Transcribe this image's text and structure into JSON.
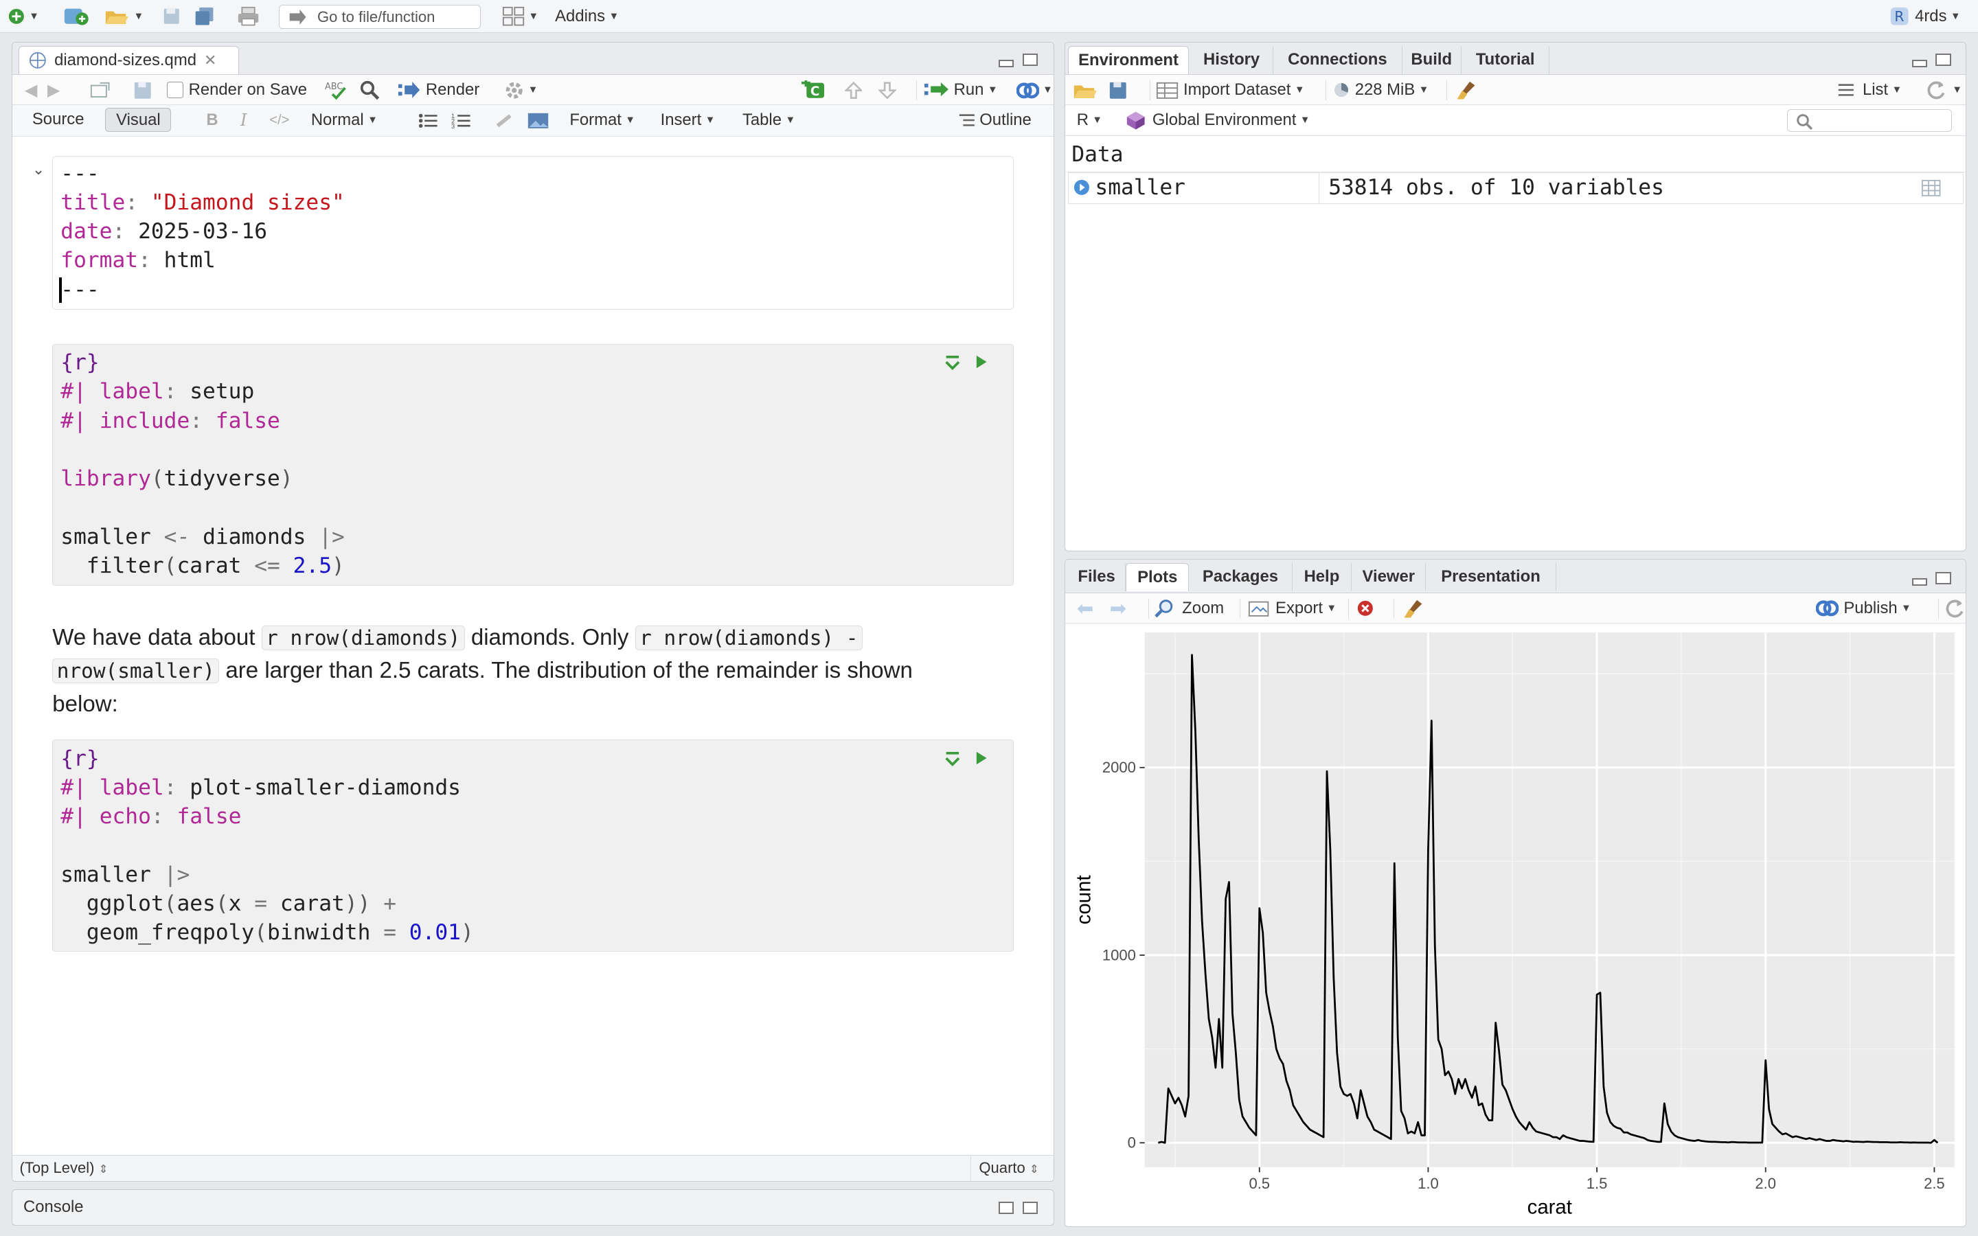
{
  "toolbar": {
    "goto_placeholder": "Go to file/function",
    "addins_label": "Addins",
    "project_label": "4rds"
  },
  "source_pane": {
    "file_tab": "diamond-sizes.qmd",
    "render_on_save": "Render on Save",
    "render_label": "Render",
    "run_label": "Run",
    "mode_source": "Source",
    "mode_visual": "Visual",
    "para_style": "Normal",
    "format_menu": "Format",
    "insert_menu": "Insert",
    "table_menu": "Table",
    "outline_label": "Outline",
    "yaml": {
      "open": "---",
      "title_key": "title",
      "title_val": "\"Diamond sizes\"",
      "date_key": "date",
      "date_val": "2025-03-16",
      "format_key": "format",
      "format_val": "html",
      "close": "---"
    },
    "chunk1": {
      "header": "{r}",
      "opt1_key": "label",
      "opt1_val": "setup",
      "opt2_key": "include",
      "opt2_val": "false",
      "lib_fn": "library",
      "lib_arg": "tidyverse",
      "assign_lhs": "smaller",
      "assign_op": "<-",
      "assign_rhs": "diamonds",
      "pipe": "|>",
      "filter_fn": "filter",
      "filter_var": "carat",
      "filter_op": "<=",
      "filter_val": "2.5"
    },
    "prose": {
      "p1": "We have data about ",
      "code1": "r nrow(diamonds)",
      "p2": " diamonds. Only ",
      "code2a": "r nrow(diamonds) -",
      "code2b": "nrow(smaller)",
      "p3": " are larger than 2.5 carats. The distribution of the remainder is shown below:"
    },
    "chunk2": {
      "header": "{r}",
      "opt1_key": "label",
      "opt1_val": "plot-smaller-diamonds",
      "opt2_key": "echo",
      "opt2_val": "false",
      "l1": "smaller",
      "pipe": "|>",
      "ggplot_fn": "ggplot",
      "aes_fn": "aes",
      "aes_x": "x",
      "aes_val": "carat",
      "plus": "+",
      "geom_fn": "geom_freqpoly",
      "bw_key": "binwidth",
      "bw_val": "0.01"
    },
    "status_left": "(Top Level)",
    "status_right": "Quarto"
  },
  "console": {
    "title": "Console"
  },
  "env_pane": {
    "tabs": [
      "Environment",
      "History",
      "Connections",
      "Build",
      "Tutorial"
    ],
    "import_label": "Import Dataset",
    "memory_label": "228 MiB",
    "view_mode": "List",
    "lang_label": "R",
    "env_label": "Global Environment",
    "section_title": "Data",
    "rows": [
      {
        "name": "smaller",
        "value": "53814 obs. of 10 variables"
      }
    ]
  },
  "files_pane": {
    "tabs": [
      "Files",
      "Plots",
      "Packages",
      "Help",
      "Viewer",
      "Presentation"
    ],
    "zoom_label": "Zoom",
    "export_label": "Export",
    "publish_label": "Publish"
  },
  "chart_data": {
    "type": "line",
    "xlabel": "carat",
    "ylabel": "count",
    "x_ticks": [
      0.5,
      1.0,
      1.5,
      2.0,
      2.5
    ],
    "x_tick_labels": [
      "0.5",
      "1.0",
      "1.5",
      "2.0",
      "2.5"
    ],
    "y_ticks": [
      0,
      1000,
      2000
    ],
    "y_tick_labels": [
      "0",
      "1000",
      "2000"
    ],
    "xlim": [
      0.16,
      2.56
    ],
    "ylim": [
      -130,
      2720
    ],
    "grid": true,
    "series": [
      {
        "values": [
          [
            0.2,
            0
          ],
          [
            0.21,
            5
          ],
          [
            0.22,
            0
          ],
          [
            0.23,
            290
          ],
          [
            0.24,
            250
          ],
          [
            0.25,
            210
          ],
          [
            0.26,
            240
          ],
          [
            0.27,
            200
          ],
          [
            0.28,
            140
          ],
          [
            0.29,
            250
          ],
          [
            0.3,
            2600
          ],
          [
            0.31,
            2200
          ],
          [
            0.32,
            1620
          ],
          [
            0.33,
            1180
          ],
          [
            0.34,
            900
          ],
          [
            0.35,
            660
          ],
          [
            0.36,
            560
          ],
          [
            0.37,
            400
          ],
          [
            0.38,
            660
          ],
          [
            0.39,
            400
          ],
          [
            0.4,
            1300
          ],
          [
            0.41,
            1390
          ],
          [
            0.42,
            690
          ],
          [
            0.43,
            480
          ],
          [
            0.44,
            230
          ],
          [
            0.45,
            140
          ],
          [
            0.46,
            110
          ],
          [
            0.47,
            80
          ],
          [
            0.48,
            60
          ],
          [
            0.49,
            40
          ],
          [
            0.5,
            1250
          ],
          [
            0.51,
            1120
          ],
          [
            0.52,
            800
          ],
          [
            0.53,
            700
          ],
          [
            0.54,
            620
          ],
          [
            0.55,
            500
          ],
          [
            0.56,
            450
          ],
          [
            0.57,
            420
          ],
          [
            0.58,
            330
          ],
          [
            0.59,
            280
          ],
          [
            0.6,
            200
          ],
          [
            0.61,
            170
          ],
          [
            0.62,
            140
          ],
          [
            0.63,
            110
          ],
          [
            0.64,
            90
          ],
          [
            0.65,
            70
          ],
          [
            0.66,
            60
          ],
          [
            0.67,
            50
          ],
          [
            0.68,
            40
          ],
          [
            0.69,
            30
          ],
          [
            0.7,
            1980
          ],
          [
            0.71,
            1560
          ],
          [
            0.72,
            880
          ],
          [
            0.73,
            480
          ],
          [
            0.74,
            300
          ],
          [
            0.75,
            260
          ],
          [
            0.76,
            250
          ],
          [
            0.77,
            260
          ],
          [
            0.78,
            210
          ],
          [
            0.79,
            130
          ],
          [
            0.8,
            280
          ],
          [
            0.81,
            210
          ],
          [
            0.82,
            140
          ],
          [
            0.83,
            110
          ],
          [
            0.84,
            70
          ],
          [
            0.85,
            60
          ],
          [
            0.86,
            50
          ],
          [
            0.87,
            40
          ],
          [
            0.88,
            30
          ],
          [
            0.89,
            20
          ],
          [
            0.9,
            1490
          ],
          [
            0.91,
            560
          ],
          [
            0.92,
            170
          ],
          [
            0.93,
            130
          ],
          [
            0.94,
            50
          ],
          [
            0.95,
            60
          ],
          [
            0.96,
            50
          ],
          [
            0.97,
            110
          ],
          [
            0.98,
            40
          ],
          [
            0.99,
            40
          ],
          [
            1.0,
            1560
          ],
          [
            1.01,
            2250
          ],
          [
            1.02,
            1050
          ],
          [
            1.03,
            550
          ],
          [
            1.04,
            500
          ],
          [
            1.05,
            360
          ],
          [
            1.06,
            380
          ],
          [
            1.07,
            340
          ],
          [
            1.08,
            260
          ],
          [
            1.09,
            340
          ],
          [
            1.1,
            290
          ],
          [
            1.11,
            340
          ],
          [
            1.12,
            280
          ],
          [
            1.13,
            240
          ],
          [
            1.14,
            300
          ],
          [
            1.15,
            200
          ],
          [
            1.16,
            210
          ],
          [
            1.17,
            150
          ],
          [
            1.18,
            120
          ],
          [
            1.19,
            120
          ],
          [
            1.2,
            640
          ],
          [
            1.21,
            490
          ],
          [
            1.22,
            310
          ],
          [
            1.23,
            280
          ],
          [
            1.24,
            230
          ],
          [
            1.25,
            180
          ],
          [
            1.26,
            140
          ],
          [
            1.27,
            110
          ],
          [
            1.28,
            90
          ],
          [
            1.29,
            70
          ],
          [
            1.3,
            110
          ],
          [
            1.31,
            80
          ],
          [
            1.32,
            60
          ],
          [
            1.33,
            55
          ],
          [
            1.34,
            50
          ],
          [
            1.35,
            45
          ],
          [
            1.36,
            40
          ],
          [
            1.37,
            30
          ],
          [
            1.38,
            30
          ],
          [
            1.39,
            20
          ],
          [
            1.4,
            40
          ],
          [
            1.41,
            30
          ],
          [
            1.42,
            25
          ],
          [
            1.43,
            20
          ],
          [
            1.44,
            15
          ],
          [
            1.45,
            10
          ],
          [
            1.46,
            10
          ],
          [
            1.47,
            8
          ],
          [
            1.48,
            6
          ],
          [
            1.49,
            5
          ],
          [
            1.5,
            790
          ],
          [
            1.51,
            800
          ],
          [
            1.52,
            300
          ],
          [
            1.53,
            160
          ],
          [
            1.54,
            110
          ],
          [
            1.55,
            90
          ],
          [
            1.56,
            80
          ],
          [
            1.57,
            75
          ],
          [
            1.58,
            55
          ],
          [
            1.59,
            55
          ],
          [
            1.6,
            45
          ],
          [
            1.61,
            40
          ],
          [
            1.62,
            35
          ],
          [
            1.63,
            30
          ],
          [
            1.64,
            25
          ],
          [
            1.65,
            15
          ],
          [
            1.66,
            10
          ],
          [
            1.67,
            8
          ],
          [
            1.68,
            5
          ],
          [
            1.69,
            5
          ],
          [
            1.7,
            210
          ],
          [
            1.71,
            100
          ],
          [
            1.72,
            60
          ],
          [
            1.73,
            40
          ],
          [
            1.74,
            30
          ],
          [
            1.75,
            25
          ],
          [
            1.76,
            20
          ],
          [
            1.77,
            15
          ],
          [
            1.78,
            12
          ],
          [
            1.79,
            10
          ],
          [
            1.8,
            15
          ],
          [
            1.81,
            10
          ],
          [
            1.82,
            8
          ],
          [
            1.83,
            6
          ],
          [
            1.84,
            5
          ],
          [
            1.85,
            5
          ],
          [
            1.86,
            4
          ],
          [
            1.87,
            3
          ],
          [
            1.88,
            3
          ],
          [
            1.89,
            2
          ],
          [
            1.9,
            4
          ],
          [
            1.91,
            3
          ],
          [
            1.92,
            2
          ],
          [
            1.93,
            2
          ],
          [
            1.94,
            2
          ],
          [
            1.95,
            1
          ],
          [
            1.96,
            1
          ],
          [
            1.97,
            1
          ],
          [
            1.98,
            1
          ],
          [
            1.99,
            1
          ],
          [
            2.0,
            440
          ],
          [
            2.01,
            180
          ],
          [
            2.02,
            100
          ],
          [
            2.03,
            80
          ],
          [
            2.04,
            60
          ],
          [
            2.05,
            45
          ],
          [
            2.06,
            50
          ],
          [
            2.07,
            40
          ],
          [
            2.08,
            30
          ],
          [
            2.09,
            35
          ],
          [
            2.1,
            30
          ],
          [
            2.11,
            25
          ],
          [
            2.12,
            20
          ],
          [
            2.13,
            25
          ],
          [
            2.14,
            20
          ],
          [
            2.15,
            15
          ],
          [
            2.16,
            20
          ],
          [
            2.17,
            15
          ],
          [
            2.18,
            10
          ],
          [
            2.19,
            10
          ],
          [
            2.2,
            15
          ],
          [
            2.21,
            12
          ],
          [
            2.22,
            10
          ],
          [
            2.23,
            8
          ],
          [
            2.24,
            10
          ],
          [
            2.25,
            8
          ],
          [
            2.26,
            5
          ],
          [
            2.27,
            6
          ],
          [
            2.28,
            5
          ],
          [
            2.29,
            4
          ],
          [
            2.3,
            6
          ],
          [
            2.31,
            5
          ],
          [
            2.32,
            4
          ],
          [
            2.33,
            4
          ],
          [
            2.34,
            3
          ],
          [
            2.35,
            3
          ],
          [
            2.36,
            3
          ],
          [
            2.37,
            2
          ],
          [
            2.38,
            2
          ],
          [
            2.39,
            2
          ],
          [
            2.4,
            3
          ],
          [
            2.41,
            2
          ],
          [
            2.42,
            2
          ],
          [
            2.43,
            1
          ],
          [
            2.44,
            2
          ],
          [
            2.45,
            1
          ],
          [
            2.46,
            1
          ],
          [
            2.47,
            1
          ],
          [
            2.48,
            1
          ],
          [
            2.49,
            0
          ],
          [
            2.5,
            15
          ],
          [
            2.51,
            0
          ]
        ]
      }
    ]
  },
  "colors": {
    "accent": "#4a90d9",
    "yaml_key": "#b02796",
    "string": "#c4161c",
    "number": "#1a12c9",
    "plot_panel": "#ebebeb"
  }
}
